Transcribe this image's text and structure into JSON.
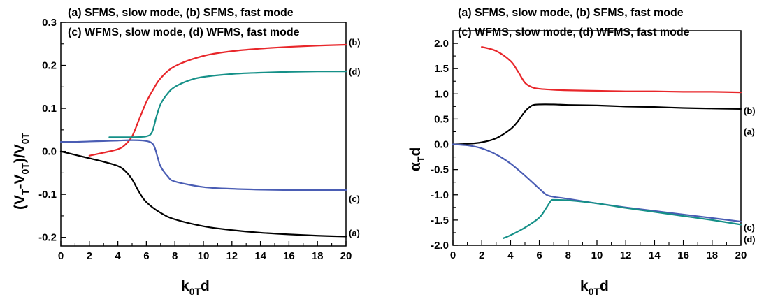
{
  "colors": {
    "a": "#000000",
    "b": "#e8262a",
    "c": "#4a5db4",
    "d": "#159088"
  },
  "chart_data": [
    {
      "type": "line",
      "legend": [
        "(a) SFMS, slow mode, (b) SFMS, fast mode",
        "(c) WFMS, slow mode, (d) WFMS, fast mode"
      ],
      "xlabel": {
        "main": "k",
        "sub": "0T",
        "tail": "d"
      },
      "ylabel": {
        "p1": "(V",
        "s1": "T",
        "p2": "-V",
        "s2": "0T",
        "p3": ")/V",
        "s3": "0T"
      },
      "xlim": [
        0,
        20
      ],
      "ylim": [
        -0.22,
        0.3
      ],
      "xticks": [
        "0",
        "2",
        "4",
        "6",
        "8",
        "10",
        "12",
        "14",
        "16",
        "18",
        "20"
      ],
      "yticks": [
        "0.3",
        "0.2",
        "0.1",
        "0.0",
        "-0.1",
        "-0.2"
      ],
      "series": [
        {
          "name": "(a)",
          "x": [
            0,
            1,
            2,
            3,
            4,
            4.5,
            5,
            5.5,
            6,
            7,
            8,
            10,
            12,
            14,
            16,
            18,
            20
          ],
          "y": [
            0.0,
            -0.008,
            -0.016,
            -0.024,
            -0.034,
            -0.045,
            -0.065,
            -0.095,
            -0.118,
            -0.143,
            -0.158,
            -0.174,
            -0.183,
            -0.189,
            -0.193,
            -0.196,
            -0.198
          ]
        },
        {
          "name": "(b)",
          "x": [
            2,
            3,
            4,
            4.5,
            5,
            5.5,
            6,
            6.5,
            7,
            8,
            10,
            12,
            14,
            16,
            18,
            20
          ],
          "y": [
            -0.01,
            -0.003,
            0.005,
            0.015,
            0.035,
            0.075,
            0.115,
            0.145,
            0.17,
            0.198,
            0.222,
            0.233,
            0.239,
            0.243,
            0.246,
            0.248
          ]
        },
        {
          "name": "(c)",
          "x": [
            0,
            1,
            2,
            3,
            4,
            5,
            6,
            6.5,
            6.8,
            7,
            7.5,
            8,
            10,
            12,
            14,
            16,
            18,
            20
          ],
          "y": [
            0.022,
            0.022,
            0.023,
            0.024,
            0.025,
            0.026,
            0.024,
            0.015,
            -0.015,
            -0.035,
            -0.058,
            -0.07,
            -0.083,
            -0.087,
            -0.089,
            -0.09,
            -0.09,
            -0.09
          ]
        },
        {
          "name": "(d)",
          "x": [
            3.4,
            4,
            5,
            6,
            6.4,
            6.7,
            7,
            7.5,
            8,
            9,
            10,
            12,
            14,
            16,
            18,
            20
          ],
          "y": [
            0.033,
            0.033,
            0.033,
            0.035,
            0.045,
            0.08,
            0.11,
            0.135,
            0.15,
            0.165,
            0.173,
            0.18,
            0.183,
            0.185,
            0.186,
            0.186
          ]
        }
      ]
    },
    {
      "type": "line",
      "legend": [
        "(a) SFMS, slow mode, (b) SFMS, fast mode",
        "(c) WFMS, slow mode, (d) WFMS, fast mode"
      ],
      "xlabel": {
        "main": "k",
        "sub": "0T",
        "tail": "d"
      },
      "ylabel": {
        "main": "α",
        "sub": "T",
        "tail": "d"
      },
      "xlim": [
        0,
        20
      ],
      "ylim": [
        -2.0,
        2.25
      ],
      "xticks": [
        "0",
        "2",
        "4",
        "6",
        "8",
        "10",
        "12",
        "14",
        "16",
        "18",
        "20"
      ],
      "yticks": [
        "2.0",
        "1.5",
        "1.0",
        "0.5",
        "0.0",
        "-0.5",
        "-1.0",
        "-1.5",
        "-2.0"
      ],
      "series": [
        {
          "name": "(a)",
          "x": [
            0,
            1,
            2,
            3,
            4,
            4.5,
            5,
            5.5,
            6,
            7,
            8,
            10,
            12,
            14,
            16,
            18,
            20
          ],
          "y": [
            0.0,
            0.01,
            0.04,
            0.12,
            0.3,
            0.45,
            0.65,
            0.77,
            0.79,
            0.79,
            0.78,
            0.77,
            0.75,
            0.74,
            0.72,
            0.71,
            0.7
          ]
        },
        {
          "name": "(b)",
          "x": [
            2,
            3,
            4,
            4.5,
            5,
            5.5,
            6,
            7,
            8,
            10,
            12,
            14,
            16,
            18,
            20
          ],
          "y": [
            1.93,
            1.85,
            1.65,
            1.45,
            1.22,
            1.13,
            1.1,
            1.08,
            1.07,
            1.06,
            1.05,
            1.05,
            1.04,
            1.04,
            1.03
          ]
        },
        {
          "name": "(c)",
          "x": [
            0,
            1,
            2,
            3,
            4,
            5,
            6,
            6.5,
            7,
            8,
            10,
            12,
            14,
            16,
            18,
            20
          ],
          "y": [
            0.0,
            -0.02,
            -0.08,
            -0.2,
            -0.38,
            -0.62,
            -0.88,
            -1.0,
            -1.04,
            -1.08,
            -1.17,
            -1.25,
            -1.32,
            -1.39,
            -1.46,
            -1.53
          ]
        },
        {
          "name": "(d)",
          "x": [
            3.5,
            4,
            5,
            6,
            6.5,
            6.8,
            7,
            8,
            10,
            12,
            14,
            16,
            18,
            20
          ],
          "y": [
            -1.86,
            -1.8,
            -1.65,
            -1.45,
            -1.25,
            -1.12,
            -1.1,
            -1.11,
            -1.17,
            -1.26,
            -1.34,
            -1.42,
            -1.5,
            -1.59
          ]
        }
      ]
    }
  ]
}
